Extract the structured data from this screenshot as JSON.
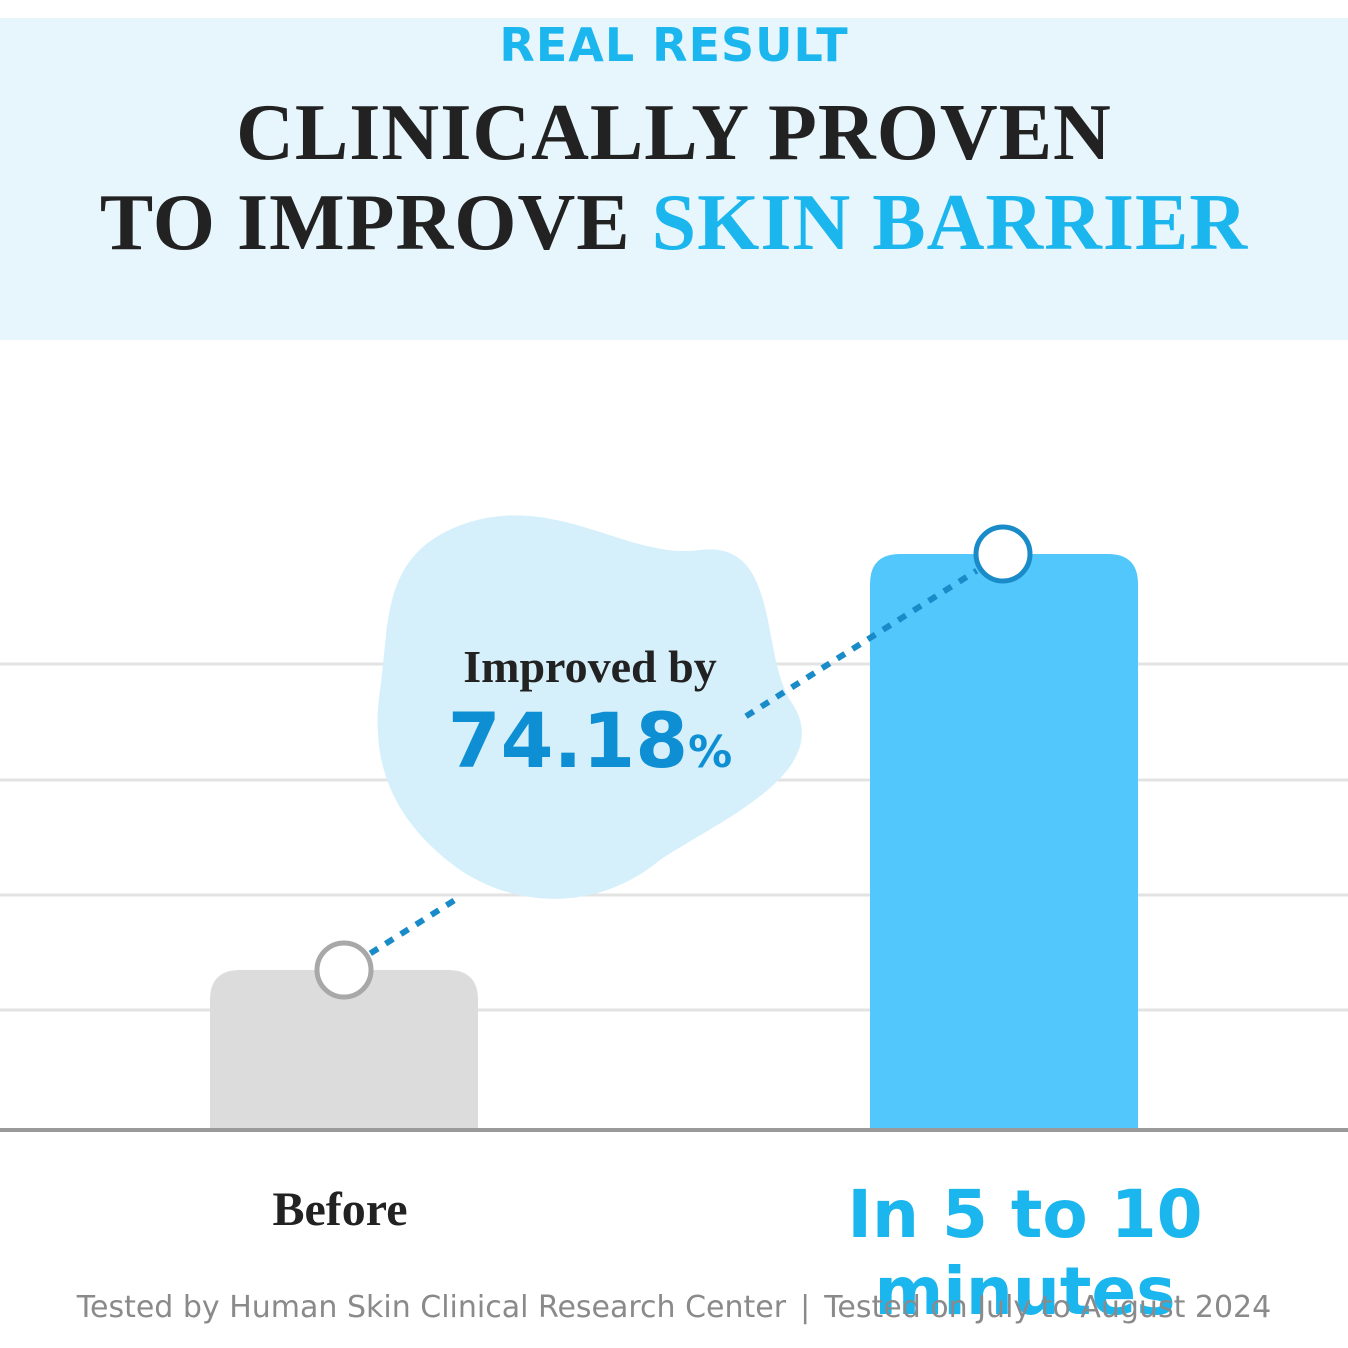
{
  "header": {
    "eyebrow": "REAL RESULT",
    "line1": "CLINICALLY PROVEN",
    "line2_prefix": "TO IMPROVE ",
    "line2_accent": "SKIN BARRIER"
  },
  "callout": {
    "label": "Improved by",
    "value": "74.18",
    "unit": "%"
  },
  "footer": {
    "left": "Tested by Human Skin Clinical Research Center",
    "separator": "|",
    "right": "Tested on July to August 2024"
  },
  "colors": {
    "accent": "#1cb6ef",
    "accent_dark": "#0e8fd3",
    "before_bar": "#dcdcdc",
    "after_bar": "#52c7fb",
    "callout_bg": "#d6f0fb"
  },
  "chart_data": {
    "type": "bar",
    "categories": [
      "Before",
      "In 5 to 10 minutes"
    ],
    "values": [
      1,
      3.6
    ],
    "ylim": [
      0,
      4.7
    ],
    "grid": true,
    "title": "",
    "xlabel": "",
    "ylabel": ""
  }
}
